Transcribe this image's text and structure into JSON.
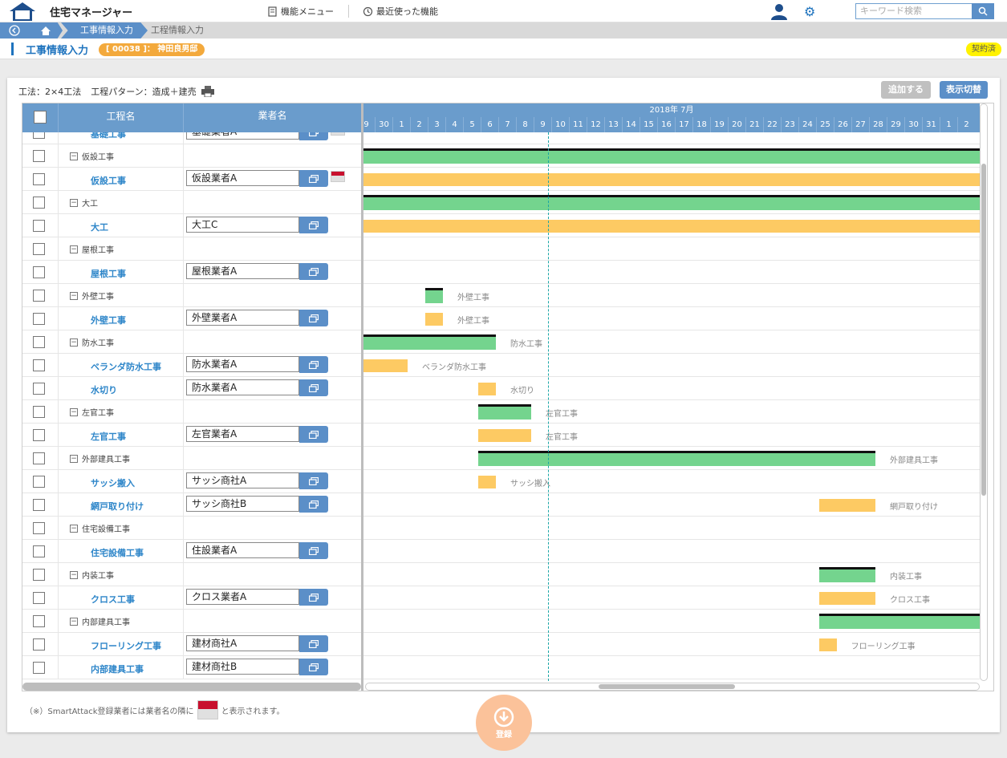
{
  "app": {
    "title": "住宅マネージャー",
    "logo_text": "住宅マネージャー"
  },
  "topnav": {
    "menu_label": "機能メニュー",
    "recent_label": "最近使った機能",
    "search_placeholder": "キーワード検索"
  },
  "breadcrumb": {
    "items": [
      "工事情報入力",
      "工程情報入力"
    ]
  },
  "page": {
    "title": "工事情報入力",
    "customer": "[ 00038 ]： 神田良男邸",
    "status": "契約済"
  },
  "meta": {
    "method": "工法：2×4工法",
    "pattern": "工程パターン：造成＋建売"
  },
  "actions": {
    "add_label": "追加する",
    "toggle_label": "表示切替",
    "register_label": "登録"
  },
  "table": {
    "headers": {
      "checkbox": "",
      "process": "工程名",
      "vendor": "業者名"
    },
    "month_label": "2018年 7月",
    "days": [
      "9",
      "30",
      "1",
      "2",
      "3",
      "4",
      "5",
      "6",
      "7",
      "8",
      "9",
      "10",
      "11",
      "12",
      "13",
      "14",
      "15",
      "16",
      "17",
      "18",
      "19",
      "20",
      "21",
      "22",
      "23",
      "24",
      "25",
      "26",
      "27",
      "28",
      "29",
      "30",
      "31",
      "1",
      "2"
    ],
    "rows": [
      {
        "type": "item",
        "name": "基礎工事",
        "vendor": "基礎業者A",
        "smart": true
      },
      {
        "type": "group",
        "name": "仮設工事"
      },
      {
        "type": "item",
        "name": "仮設工事",
        "vendor": "仮設業者A",
        "smart": true
      },
      {
        "type": "group",
        "name": "大工"
      },
      {
        "type": "item",
        "name": "大工",
        "vendor": "大工C"
      },
      {
        "type": "group",
        "name": "屋根工事"
      },
      {
        "type": "item",
        "name": "屋根工事",
        "vendor": "屋根業者A"
      },
      {
        "type": "group",
        "name": "外壁工事"
      },
      {
        "type": "item",
        "name": "外壁工事",
        "vendor": "外壁業者A"
      },
      {
        "type": "group",
        "name": "防水工事"
      },
      {
        "type": "item",
        "name": "ベランダ防水工事",
        "vendor": "防水業者A"
      },
      {
        "type": "item",
        "name": "水切り",
        "vendor": "防水業者A"
      },
      {
        "type": "group",
        "name": "左官工事"
      },
      {
        "type": "item",
        "name": "左官工事",
        "vendor": "左官業者A"
      },
      {
        "type": "group",
        "name": "外部建具工事"
      },
      {
        "type": "item",
        "name": "サッシ搬入",
        "vendor": "サッシ商社A"
      },
      {
        "type": "item",
        "name": "網戸取り付け",
        "vendor": "サッシ商社B"
      },
      {
        "type": "group",
        "name": "住宅設備工事"
      },
      {
        "type": "item",
        "name": "住宅設備工事",
        "vendor": "住設業者A"
      },
      {
        "type": "group",
        "name": "内装工事"
      },
      {
        "type": "item",
        "name": "クロス工事",
        "vendor": "クロス業者A"
      },
      {
        "type": "group",
        "name": "内部建具工事"
      },
      {
        "type": "item",
        "name": "フローリング工事",
        "vendor": "建材商社A"
      },
      {
        "type": "item",
        "name": "内部建具工事",
        "vendor": "建材商社B"
      }
    ],
    "bars": [
      {
        "row": 1,
        "color": "green",
        "top": true,
        "start": 0,
        "end": 35,
        "label": ""
      },
      {
        "row": 2,
        "color": "yellow",
        "top": false,
        "start": 0,
        "end": 35,
        "label": ""
      },
      {
        "row": 3,
        "color": "green",
        "top": true,
        "start": 0,
        "end": 35,
        "label": ""
      },
      {
        "row": 4,
        "color": "yellow",
        "top": false,
        "start": 0,
        "end": 35,
        "label": ""
      },
      {
        "row": 7,
        "color": "green",
        "top": true,
        "start": 3.5,
        "end": 4.5,
        "label": "外壁工事"
      },
      {
        "row": 8,
        "color": "yellow",
        "top": false,
        "start": 3.5,
        "end": 4.5,
        "label": "外壁工事"
      },
      {
        "row": 9,
        "color": "green",
        "top": true,
        "start": 0,
        "end": 7.5,
        "label": "防水工事"
      },
      {
        "row": 10,
        "color": "yellow",
        "top": false,
        "start": 0,
        "end": 2.5,
        "label": "ベランダ防水工事"
      },
      {
        "row": 11,
        "color": "yellow",
        "top": false,
        "start": 6.5,
        "end": 7.5,
        "label": "水切り"
      },
      {
        "row": 12,
        "color": "green",
        "top": true,
        "start": 6.5,
        "end": 9.5,
        "label": "左官工事"
      },
      {
        "row": 13,
        "color": "yellow",
        "top": false,
        "start": 6.5,
        "end": 9.5,
        "label": "左官工事"
      },
      {
        "row": 14,
        "color": "green",
        "top": true,
        "start": 6.5,
        "end": 29,
        "label": "外部建具工事"
      },
      {
        "row": 15,
        "color": "yellow",
        "top": false,
        "start": 6.5,
        "end": 7.5,
        "label": "サッシ搬入"
      },
      {
        "row": 16,
        "color": "yellow",
        "top": false,
        "start": 25.8,
        "end": 29,
        "label": "網戸取り付け"
      },
      {
        "row": 19,
        "color": "green",
        "top": true,
        "start": 25.8,
        "end": 29,
        "label": "内装工事"
      },
      {
        "row": 20,
        "color": "yellow",
        "top": false,
        "start": 25.8,
        "end": 29,
        "label": "クロス工事"
      },
      {
        "row": 21,
        "color": "green",
        "top": true,
        "start": 25.8,
        "end": 35,
        "label": ""
      },
      {
        "row": 22,
        "color": "yellow",
        "top": false,
        "start": 25.8,
        "end": 26.8,
        "label": "フローリング工事"
      }
    ]
  },
  "footnote": {
    "before": "（※）SmartAttack登録業者には業者名の隣に",
    "after": "と表示されます。"
  }
}
